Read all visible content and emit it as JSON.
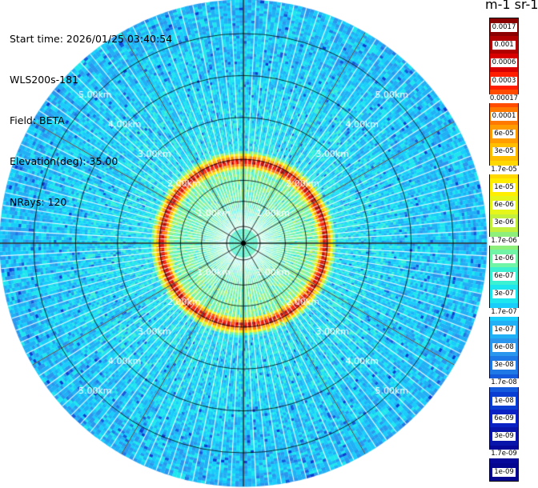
{
  "header": {
    "start_time": "Start time: 2026/01/25 03:40:54",
    "device": "WLS200s-181",
    "field": "Field: BETA",
    "elevation": "Elevation(deg): 35.00",
    "nrays": "NRays: 120"
  },
  "plot": {
    "max_range_km": 5.8,
    "range_ring_labels": [
      "1.00km",
      "2.00km",
      "3.00km",
      "4.00km",
      "5.00km"
    ],
    "n_rays": 120,
    "data_summary": {
      "inner_zone_level": 0.45,
      "ring_peak_km": 1.95,
      "ring_peak_level": 0.97,
      "outer_zone_level": 0.4
    }
  },
  "colorbar": {
    "unit_title": "m-1 sr-1",
    "labels": [
      "0.0017",
      "0.001",
      "0.0006",
      "0.0003",
      "0.00017",
      "0.0001",
      "6e-05",
      "3e-05",
      "1.7e-05",
      "1e-05",
      "6e-06",
      "3e-06",
      "1.7e-06",
      "1e-06",
      "6e-07",
      "3e-07",
      "1.7e-07",
      "1e-07",
      "6e-08",
      "3e-08",
      "1.7e-08",
      "1e-08",
      "6e-09",
      "3e-09",
      "1.7e-09",
      "1e-09"
    ],
    "colors": [
      "#8b0000",
      "#b00000",
      "#d80000",
      "#ff1e00",
      "#ff4c00",
      "#ff7800",
      "#ff9d00",
      "#ffbf00",
      "#ffd800",
      "#ffee00",
      "#e6f51a",
      "#c2f03c",
      "#8ef07a",
      "#6ff5a5",
      "#3cf0d2",
      "#1ee6ee",
      "#18cdfa",
      "#20b0f5",
      "#2a96ee",
      "#1e78e6",
      "#145adc",
      "#0a3ed2",
      "#0a22c3",
      "#0814aa",
      "#06089a",
      "#040690"
    ]
  }
}
